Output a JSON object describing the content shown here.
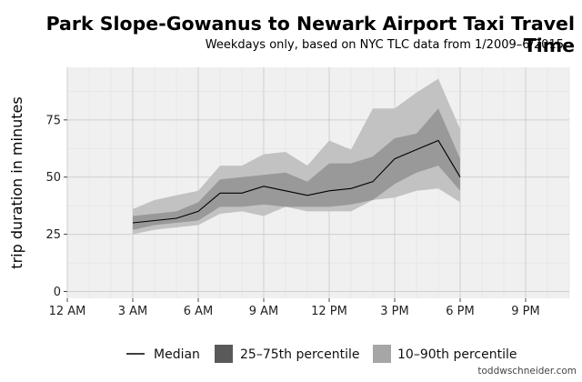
{
  "chart_data": {
    "type": "area",
    "title": "Park Slope-Gowanus to Newark Airport Taxi Travel Time",
    "subtitle": "Weekdays only, based on NYC TLC data from 1/2009–6/2015",
    "xlabel": "",
    "ylabel": "trip duration in minutes",
    "x_ticks": [
      "12 AM",
      "3 AM",
      "6 AM",
      "9 AM",
      "12 PM",
      "3 PM",
      "6 PM",
      "9 PM"
    ],
    "x_tick_hours": [
      0,
      3,
      6,
      9,
      12,
      15,
      18,
      21
    ],
    "y_ticks": [
      0,
      25,
      50,
      75
    ],
    "xlim": [
      0,
      23
    ],
    "ylim": [
      -3,
      98
    ],
    "grid": true,
    "legend_position": "bottom",
    "x": [
      3,
      4,
      5,
      6,
      7,
      8,
      9,
      10,
      11,
      12,
      13,
      14,
      15,
      16,
      17,
      18
    ],
    "series": [
      {
        "name": "Median",
        "values": [
          30,
          31,
          32,
          35,
          43,
          43,
          46,
          44,
          42,
          44,
          45,
          48,
          58,
          62,
          66,
          50
        ]
      },
      {
        "name": "25–75th percentile",
        "lower": [
          27,
          29,
          30,
          31,
          37,
          37,
          38,
          37,
          37,
          37,
          38,
          40,
          47,
          52,
          55,
          44
        ],
        "upper": [
          33,
          34,
          35,
          39,
          49,
          50,
          51,
          52,
          48,
          56,
          56,
          59,
          67,
          69,
          80,
          58
        ]
      },
      {
        "name": "10–90th percentile",
        "lower": [
          25,
          27,
          28,
          29,
          34,
          35,
          33,
          37,
          35,
          35,
          35,
          40,
          41,
          44,
          45,
          39
        ],
        "upper": [
          36,
          40,
          42,
          44,
          55,
          55,
          60,
          61,
          55,
          66,
          62,
          80,
          80,
          87,
          93,
          71
        ]
      }
    ],
    "colors": {
      "panel_bg": "#f0f0f0",
      "grid_major": "#cfcfcf",
      "grid_minor": "#e2e2e2",
      "band_10_90": "#c2c2c2",
      "band_25_75": "#999999",
      "median": "#000000",
      "legend_25_75": "#595959",
      "legend_10_90": "#a6a6a6"
    }
  },
  "credit": "toddwschneider.com"
}
